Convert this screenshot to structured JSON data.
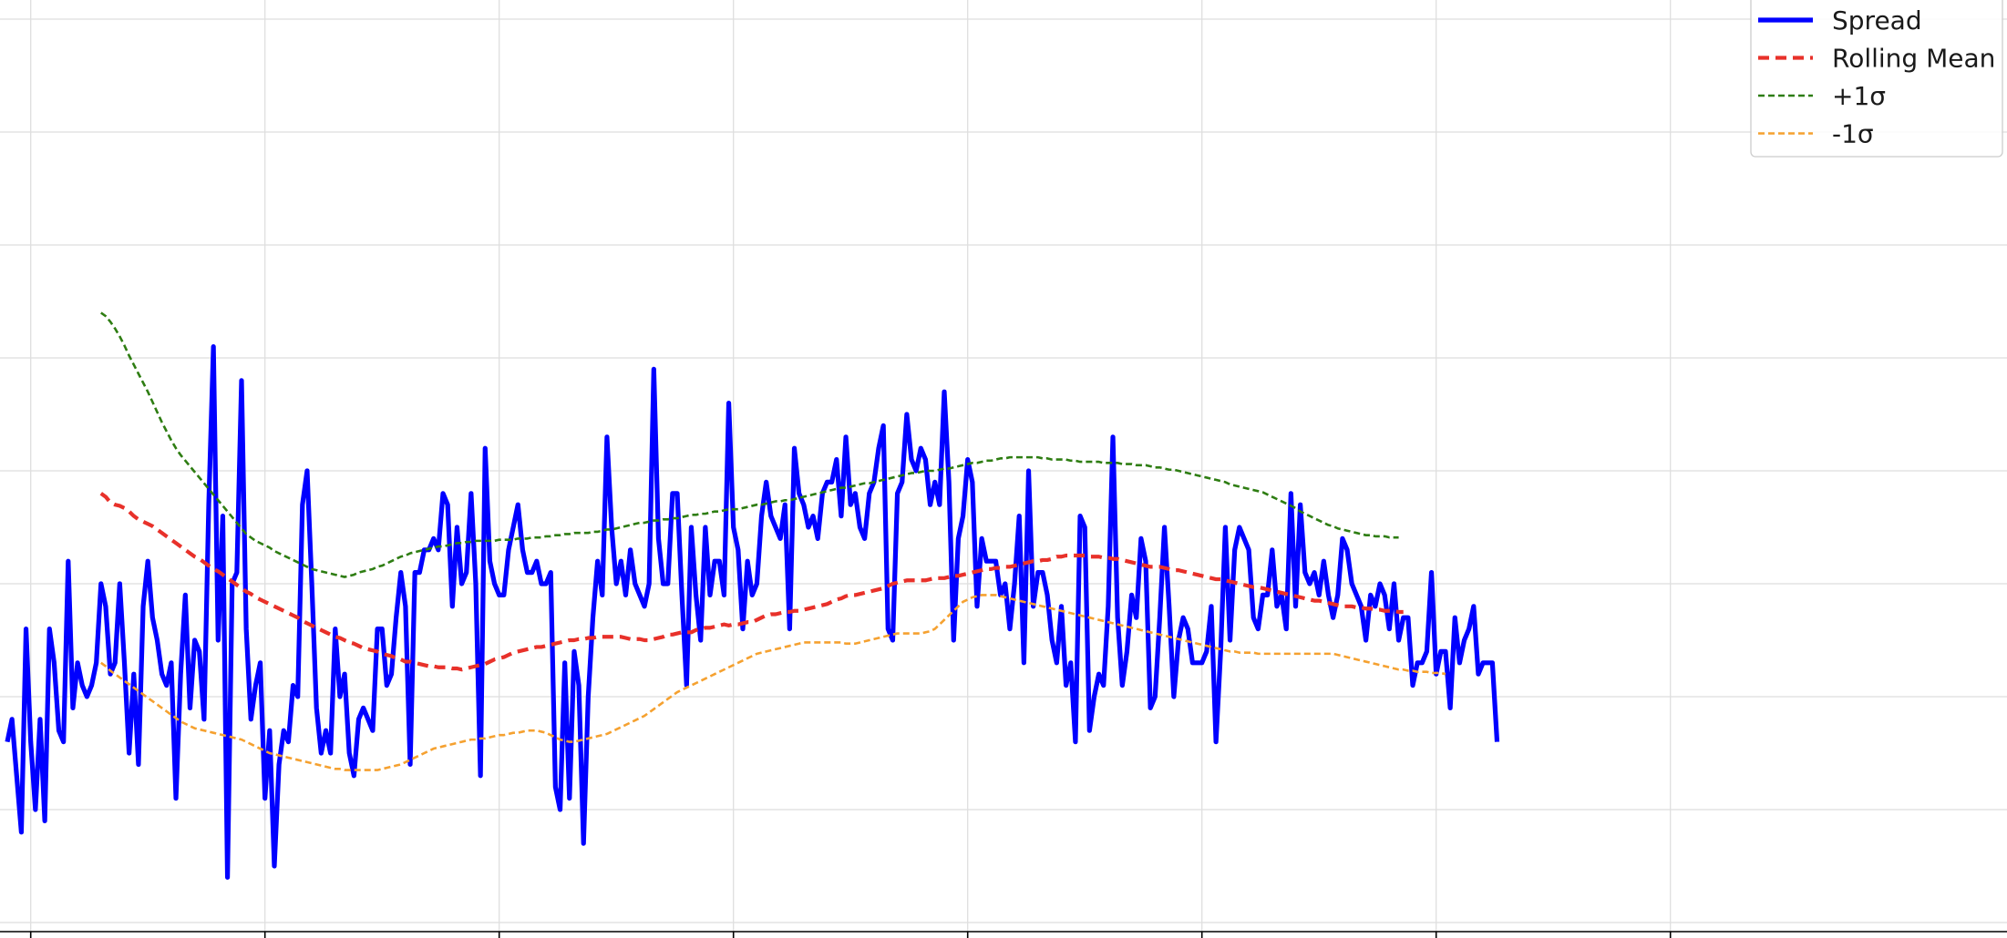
{
  "chart_data": {
    "type": "line",
    "title": "",
    "xlabel": "",
    "ylabel": "",
    "grid": true,
    "legend_position": "top-right",
    "xlim": [
      0,
      415
    ],
    "ylim": [
      0,
      8
    ],
    "x_tick_values": [
      5,
      55,
      105,
      155,
      205,
      255,
      305,
      355
    ],
    "y_gridlines": [
      0,
      1,
      2,
      3,
      4,
      5,
      6,
      7,
      8
    ],
    "x_start": 0,
    "x_step": 1,
    "series": [
      {
        "name": "Spread",
        "color": "#0000ff",
        "style": "solid",
        "values": [
          1.6,
          1.8,
          1.3,
          0.8,
          2.6,
          1.6,
          1.0,
          1.8,
          0.9,
          2.6,
          2.3,
          1.7,
          1.6,
          3.2,
          1.9,
          2.3,
          2.1,
          2.0,
          2.1,
          2.3,
          3.0,
          2.8,
          2.2,
          2.3,
          3.0,
          2.3,
          1.5,
          2.2,
          1.4,
          2.8,
          3.2,
          2.7,
          2.5,
          2.2,
          2.1,
          2.3,
          1.1,
          2.2,
          2.9,
          1.9,
          2.5,
          2.4,
          1.8,
          3.7,
          5.1,
          2.5,
          3.6,
          0.4,
          3.0,
          3.1,
          4.8,
          2.6,
          1.8,
          2.1,
          2.3,
          1.1,
          1.7,
          0.5,
          1.4,
          1.7,
          1.6,
          2.1,
          2.0,
          3.7,
          4.0,
          3.0,
          1.9,
          1.5,
          1.7,
          1.5,
          2.6,
          2.0,
          2.2,
          1.5,
          1.3,
          1.8,
          1.9,
          1.8,
          1.7,
          2.6,
          2.6,
          2.1,
          2.2,
          2.7,
          3.1,
          2.8,
          1.4,
          3.1,
          3.1,
          3.3,
          3.3,
          3.4,
          3.3,
          3.8,
          3.7,
          2.8,
          3.5,
          3.0,
          3.1,
          3.8,
          3.0,
          1.3,
          4.2,
          3.2,
          3.0,
          2.9,
          2.9,
          3.3,
          3.5,
          3.7,
          3.3,
          3.1,
          3.1,
          3.2,
          3.0,
          3.0,
          3.1,
          1.2,
          1.0,
          2.3,
          1.1,
          2.4,
          2.1,
          0.7,
          2.0,
          2.7,
          3.2,
          2.9,
          4.3,
          3.5,
          3.0,
          3.2,
          2.9,
          3.3,
          3.0,
          2.9,
          2.8,
          3.0,
          4.9,
          3.4,
          3.0,
          3.0,
          3.8,
          3.8,
          2.9,
          2.1,
          3.5,
          2.9,
          2.5,
          3.5,
          2.9,
          3.2,
          3.2,
          2.9,
          4.6,
          3.5,
          3.3,
          2.6,
          3.2,
          2.9,
          3.0,
          3.6,
          3.9,
          3.6,
          3.5,
          3.4,
          3.7,
          2.6,
          4.2,
          3.8,
          3.7,
          3.5,
          3.6,
          3.4,
          3.8,
          3.9,
          3.9,
          4.1,
          3.6,
          4.3,
          3.7,
          3.8,
          3.5,
          3.4,
          3.8,
          3.9,
          4.2,
          4.4,
          2.6,
          2.5,
          3.8,
          3.9,
          4.5,
          4.1,
          4.0,
          4.2,
          4.1,
          3.7,
          3.9,
          3.7,
          4.7,
          3.9,
          2.5,
          3.4,
          3.6,
          4.1,
          3.9,
          2.8,
          3.4,
          3.2,
          3.2,
          3.2,
          2.9,
          3.0,
          2.6,
          3.0,
          3.6,
          2.3,
          4.0,
          2.8,
          3.1,
          3.1,
          2.9,
          2.5,
          2.3,
          2.8,
          2.1,
          2.3,
          1.6,
          3.6,
          3.5,
          1.7,
          2.0,
          2.2,
          2.1,
          2.8,
          4.3,
          2.7,
          2.1,
          2.4,
          2.9,
          2.7,
          3.4,
          3.2,
          1.9,
          2.0,
          2.7,
          3.5,
          2.8,
          2.0,
          2.5,
          2.7,
          2.6,
          2.3,
          2.3,
          2.3,
          2.4,
          2.8,
          1.6,
          2.4,
          3.5,
          2.5,
          3.3,
          3.5,
          3.4,
          3.3,
          2.7,
          2.6,
          2.9,
          2.9,
          3.3,
          2.8,
          2.9,
          2.6,
          3.8,
          2.8,
          3.7,
          3.1,
          3.0,
          3.1,
          2.9,
          3.2,
          2.9,
          2.7,
          2.9,
          3.4,
          3.3,
          3.0,
          2.9,
          2.8,
          2.5,
          2.9,
          2.8,
          3.0,
          2.9,
          2.6,
          3.0,
          2.5,
          2.7,
          2.7,
          2.1,
          2.3,
          2.3,
          2.4,
          3.1,
          2.2,
          2.4,
          2.4,
          1.9,
          2.7,
          2.3,
          2.5,
          2.6,
          2.8,
          2.2,
          2.3,
          2.3,
          2.3,
          1.6
        ]
      },
      {
        "name": "Rolling Mean",
        "color": "#e8312a",
        "style": "dashed",
        "x_start": 20,
        "values": [
          3.8,
          3.77,
          3.72,
          3.7,
          3.69,
          3.67,
          3.64,
          3.6,
          3.57,
          3.55,
          3.53,
          3.51,
          3.48,
          3.45,
          3.42,
          3.39,
          3.36,
          3.33,
          3.3,
          3.27,
          3.24,
          3.22,
          3.19,
          3.16,
          3.13,
          3.11,
          3.08,
          3.05,
          3.02,
          2.99,
          2.96,
          2.93,
          2.91,
          2.88,
          2.86,
          2.84,
          2.82,
          2.8,
          2.78,
          2.76,
          2.74,
          2.72,
          2.7,
          2.67,
          2.65,
          2.63,
          2.61,
          2.59,
          2.57,
          2.55,
          2.53,
          2.52,
          2.5,
          2.48,
          2.47,
          2.45,
          2.43,
          2.42,
          2.41,
          2.4,
          2.38,
          2.37,
          2.36,
          2.34,
          2.33,
          2.31,
          2.31,
          2.3,
          2.29,
          2.28,
          2.27,
          2.27,
          2.26,
          2.26,
          2.26,
          2.25,
          2.25,
          2.24,
          2.25,
          2.26,
          2.27,
          2.28,
          2.29,
          2.31,
          2.33,
          2.34,
          2.35,
          2.37,
          2.39,
          2.4,
          2.41,
          2.42,
          2.43,
          2.44,
          2.44,
          2.45,
          2.46,
          2.47,
          2.48,
          2.49,
          2.5,
          2.5,
          2.51,
          2.51,
          2.52,
          2.52,
          2.53,
          2.53,
          2.53,
          2.53,
          2.53,
          2.53,
          2.52,
          2.51,
          2.51,
          2.51,
          2.5,
          2.5,
          2.51,
          2.52,
          2.53,
          2.55,
          2.55,
          2.56,
          2.57,
          2.57,
          2.57,
          2.59,
          2.6,
          2.61,
          2.61,
          2.62,
          2.63,
          2.64,
          2.63,
          2.64,
          2.64,
          2.65,
          2.66,
          2.66,
          2.68,
          2.7,
          2.72,
          2.73,
          2.73,
          2.74,
          2.75,
          2.75,
          2.76,
          2.76,
          2.77,
          2.78,
          2.79,
          2.8,
          2.81,
          2.82,
          2.84,
          2.86,
          2.87,
          2.89,
          2.9,
          2.9,
          2.91,
          2.92,
          2.93,
          2.94,
          2.95,
          2.96,
          2.98,
          3.0,
          3.01,
          3.02,
          3.03,
          3.03,
          3.03,
          3.03,
          3.03,
          3.04,
          3.05,
          3.05,
          3.05,
          3.06,
          3.07,
          3.07,
          3.08,
          3.09,
          3.1,
          3.11,
          3.12,
          3.13,
          3.13,
          3.14,
          3.14,
          3.15,
          3.15,
          3.16,
          3.17,
          3.18,
          3.19,
          3.2,
          3.2,
          3.21,
          3.21,
          3.22,
          3.24,
          3.24,
          3.25,
          3.25,
          3.25,
          3.25,
          3.25,
          3.24,
          3.24,
          3.24,
          3.23,
          3.23,
          3.22,
          3.22,
          3.21,
          3.2,
          3.19,
          3.18,
          3.17,
          3.16,
          3.15,
          3.15,
          3.15,
          3.14,
          3.13,
          3.12,
          3.12,
          3.11,
          3.1,
          3.09,
          3.08,
          3.07,
          3.06,
          3.05,
          3.04,
          3.04,
          3.03,
          3.02,
          3.01,
          3.0,
          2.99,
          2.98,
          2.97,
          2.97,
          2.96,
          2.95,
          2.94,
          2.93,
          2.92,
          2.91,
          2.9,
          2.89,
          2.88,
          2.87,
          2.86,
          2.85,
          2.85,
          2.84,
          2.83,
          2.82,
          2.81,
          2.8,
          2.8,
          2.8,
          2.79,
          2.79,
          2.78,
          2.78,
          2.77,
          2.77,
          2.76,
          2.76,
          2.76,
          2.75,
          2.75
        ]
      },
      {
        "name": "+1σ",
        "color": "#2e7d12",
        "style": "dashed",
        "x_start": 20,
        "values": [
          5.4,
          5.37,
          5.32,
          5.26,
          5.19,
          5.11,
          5.02,
          4.94,
          4.86,
          4.78,
          4.7,
          4.61,
          4.52,
          4.43,
          4.35,
          4.27,
          4.2,
          4.14,
          4.09,
          4.04,
          3.99,
          3.94,
          3.89,
          3.84,
          3.79,
          3.74,
          3.69,
          3.64,
          3.59,
          3.54,
          3.49,
          3.44,
          3.41,
          3.38,
          3.36,
          3.34,
          3.32,
          3.29,
          3.27,
          3.25,
          3.23,
          3.21,
          3.19,
          3.17,
          3.15,
          3.13,
          3.12,
          3.11,
          3.1,
          3.09,
          3.08,
          3.07,
          3.06,
          3.07,
          3.08,
          3.1,
          3.11,
          3.12,
          3.13,
          3.15,
          3.16,
          3.18,
          3.2,
          3.22,
          3.24,
          3.25,
          3.27,
          3.28,
          3.29,
          3.3,
          3.31,
          3.32,
          3.33,
          3.33,
          3.34,
          3.35,
          3.36,
          3.36,
          3.37,
          3.37,
          3.38,
          3.38,
          3.38,
          3.38,
          3.38,
          3.39,
          3.39,
          3.39,
          3.39,
          3.4,
          3.4,
          3.4,
          3.41,
          3.41,
          3.41,
          3.42,
          3.42,
          3.43,
          3.43,
          3.44,
          3.44,
          3.45,
          3.45,
          3.45,
          3.45,
          3.46,
          3.46,
          3.47,
          3.48,
          3.48,
          3.49,
          3.5,
          3.51,
          3.52,
          3.53,
          3.54,
          3.54,
          3.55,
          3.56,
          3.56,
          3.57,
          3.57,
          3.58,
          3.58,
          3.59,
          3.6,
          3.61,
          3.61,
          3.62,
          3.62,
          3.63,
          3.64,
          3.64,
          3.65,
          3.66,
          3.66,
          3.66,
          3.67,
          3.68,
          3.69,
          3.7,
          3.7,
          3.71,
          3.72,
          3.73,
          3.73,
          3.74,
          3.74,
          3.75,
          3.76,
          3.77,
          3.78,
          3.79,
          3.8,
          3.81,
          3.82,
          3.83,
          3.84,
          3.85,
          3.85,
          3.86,
          3.87,
          3.88,
          3.89,
          3.89,
          3.9,
          3.91,
          3.92,
          3.93,
          3.94,
          3.95,
          3.96,
          3.97,
          3.98,
          3.98,
          3.99,
          4.0,
          4.0,
          4.0,
          4.01,
          4.02,
          4.02,
          4.03,
          4.04,
          4.05,
          4.06,
          4.07,
          4.07,
          4.08,
          4.09,
          4.09,
          4.1,
          4.11,
          4.11,
          4.12,
          4.12,
          4.12,
          4.12,
          4.12,
          4.12,
          4.12,
          4.11,
          4.11,
          4.1,
          4.1,
          4.1,
          4.1,
          4.09,
          4.09,
          4.08,
          4.08,
          4.08,
          4.08,
          4.08,
          4.07,
          4.07,
          4.07,
          4.07,
          4.06,
          4.06,
          4.06,
          4.05,
          4.05,
          4.05,
          4.04,
          4.03,
          4.03,
          4.02,
          4.01,
          4.01,
          4.0,
          3.99,
          3.98,
          3.97,
          3.96,
          3.95,
          3.94,
          3.93,
          3.92,
          3.91,
          3.9,
          3.88,
          3.87,
          3.86,
          3.85,
          3.84,
          3.83,
          3.82,
          3.81,
          3.79,
          3.77,
          3.75,
          3.73,
          3.71,
          3.69,
          3.67,
          3.64,
          3.62,
          3.6,
          3.58,
          3.56,
          3.54,
          3.52,
          3.51,
          3.49,
          3.48,
          3.47,
          3.46,
          3.45,
          3.44,
          3.43,
          3.43,
          3.42,
          3.42,
          3.42,
          3.41,
          3.41,
          3.41
        ]
      },
      {
        "name": "-1σ",
        "color": "#f5a130",
        "style": "dashed",
        "x_start": 20,
        "values": [
          2.3,
          2.27,
          2.23,
          2.2,
          2.17,
          2.14,
          2.11,
          2.08,
          2.05,
          2.02,
          1.99,
          1.96,
          1.93,
          1.9,
          1.87,
          1.84,
          1.81,
          1.78,
          1.76,
          1.74,
          1.72,
          1.71,
          1.7,
          1.69,
          1.68,
          1.67,
          1.66,
          1.65,
          1.64,
          1.63,
          1.62,
          1.6,
          1.58,
          1.56,
          1.54,
          1.52,
          1.5,
          1.49,
          1.48,
          1.47,
          1.46,
          1.45,
          1.44,
          1.43,
          1.42,
          1.41,
          1.4,
          1.39,
          1.38,
          1.37,
          1.36,
          1.36,
          1.35,
          1.35,
          1.35,
          1.35,
          1.35,
          1.35,
          1.35,
          1.35,
          1.36,
          1.37,
          1.38,
          1.39,
          1.4,
          1.42,
          1.44,
          1.46,
          1.48,
          1.5,
          1.52,
          1.54,
          1.55,
          1.56,
          1.57,
          1.58,
          1.59,
          1.6,
          1.61,
          1.62,
          1.62,
          1.63,
          1.63,
          1.64,
          1.65,
          1.66,
          1.66,
          1.67,
          1.68,
          1.68,
          1.69,
          1.7,
          1.7,
          1.7,
          1.69,
          1.68,
          1.66,
          1.64,
          1.62,
          1.61,
          1.6,
          1.6,
          1.61,
          1.62,
          1.63,
          1.64,
          1.65,
          1.66,
          1.67,
          1.69,
          1.71,
          1.73,
          1.75,
          1.77,
          1.79,
          1.81,
          1.83,
          1.86,
          1.89,
          1.92,
          1.95,
          1.98,
          2.01,
          2.04,
          2.06,
          2.08,
          2.1,
          2.12,
          2.14,
          2.16,
          2.18,
          2.2,
          2.22,
          2.24,
          2.26,
          2.28,
          2.3,
          2.32,
          2.34,
          2.36,
          2.38,
          2.39,
          2.4,
          2.41,
          2.42,
          2.43,
          2.44,
          2.45,
          2.46,
          2.47,
          2.48,
          2.48,
          2.48,
          2.48,
          2.48,
          2.48,
          2.48,
          2.48,
          2.48,
          2.47,
          2.47,
          2.47,
          2.48,
          2.49,
          2.5,
          2.51,
          2.52,
          2.53,
          2.54,
          2.55,
          2.56,
          2.56,
          2.56,
          2.56,
          2.56,
          2.56,
          2.57,
          2.58,
          2.6,
          2.64,
          2.68,
          2.72,
          2.76,
          2.8,
          2.84,
          2.86,
          2.88,
          2.89,
          2.9,
          2.9,
          2.9,
          2.9,
          2.89,
          2.88,
          2.87,
          2.86,
          2.85,
          2.84,
          2.83,
          2.82,
          2.81,
          2.8,
          2.79,
          2.78,
          2.77,
          2.76,
          2.75,
          2.74,
          2.73,
          2.72,
          2.71,
          2.7,
          2.69,
          2.68,
          2.67,
          2.66,
          2.65,
          2.64,
          2.63,
          2.62,
          2.61,
          2.6,
          2.59,
          2.58,
          2.57,
          2.56,
          2.55,
          2.54,
          2.53,
          2.52,
          2.51,
          2.5,
          2.49,
          2.48,
          2.47,
          2.46,
          2.45,
          2.44,
          2.43,
          2.42,
          2.41,
          2.4,
          2.4,
          2.39,
          2.39,
          2.39,
          2.39,
          2.38,
          2.38,
          2.38,
          2.38,
          2.38,
          2.38,
          2.38,
          2.38,
          2.38,
          2.38,
          2.38,
          2.38,
          2.38,
          2.38,
          2.38,
          2.38,
          2.38,
          2.37,
          2.36,
          2.35,
          2.34,
          2.33,
          2.32,
          2.31,
          2.3,
          2.29,
          2.28,
          2.27,
          2.26,
          2.25,
          2.24,
          2.24,
          2.23,
          2.23,
          2.22,
          2.22,
          2.22,
          2.21,
          2.21,
          2.21,
          2.2
        ]
      }
    ]
  }
}
